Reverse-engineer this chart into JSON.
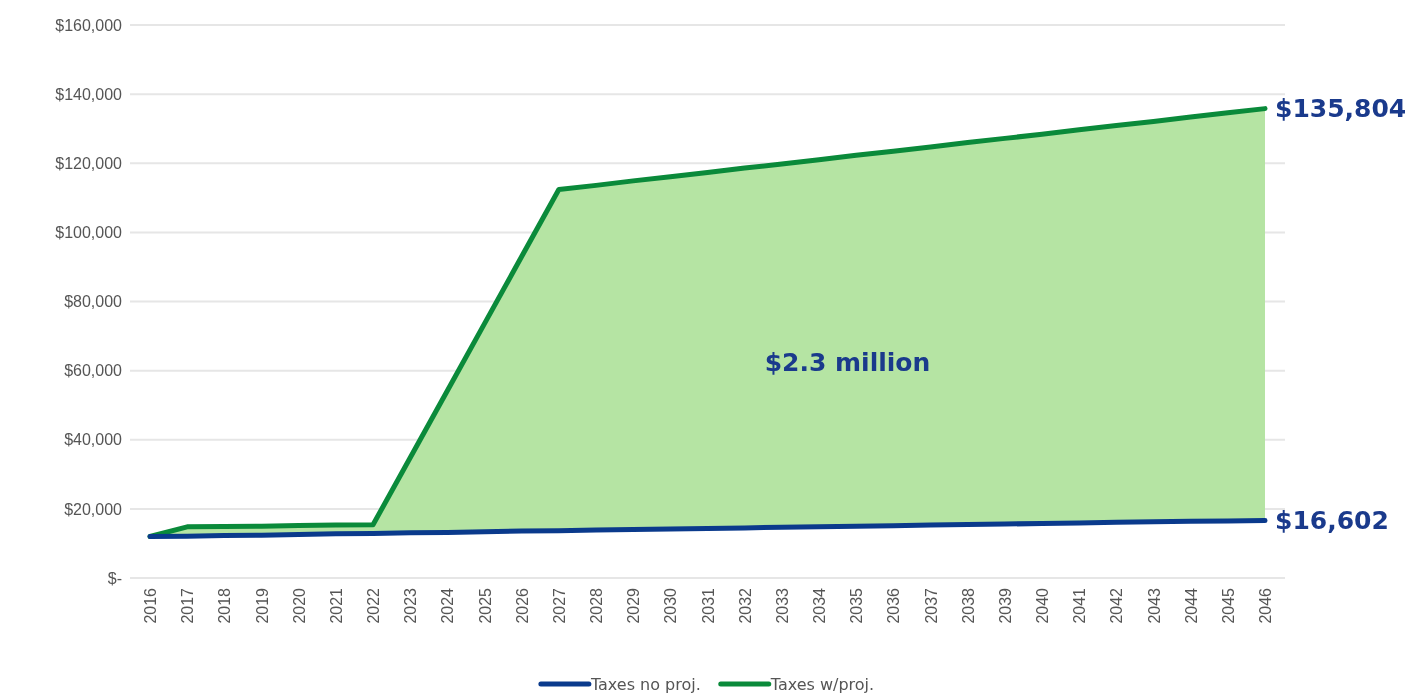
{
  "chart_data": {
    "type": "line",
    "categories": [
      "2016",
      "2017",
      "2018",
      "2019",
      "2020",
      "2021",
      "2022",
      "2023",
      "2024",
      "2025",
      "2026",
      "2027",
      "2028",
      "2029",
      "2030",
      "2031",
      "2032",
      "2033",
      "2034",
      "2035",
      "2036",
      "2037",
      "2038",
      "2039",
      "2040",
      "2041",
      "2042",
      "2043",
      "2044",
      "2045",
      "2046"
    ],
    "series": [
      {
        "name": "Taxes no proj.",
        "color": "#0a3a8c",
        "values": [
          12000,
          12100,
          12300,
          12400,
          12600,
          12800,
          12900,
          13100,
          13200,
          13400,
          13600,
          13700,
          13900,
          14000,
          14200,
          14300,
          14500,
          14700,
          14800,
          15000,
          15100,
          15300,
          15500,
          15600,
          15800,
          15900,
          16100,
          16300,
          16400,
          16500,
          16602
        ]
      },
      {
        "name": "Taxes w/proj.",
        "color": "#0a8a3a",
        "type": "area",
        "values": [
          12000,
          14800,
          14900,
          15000,
          15200,
          15300,
          15400,
          34800,
          54200,
          73600,
          93000,
          112400,
          113600,
          114900,
          116100,
          117300,
          118600,
          119800,
          121000,
          122300,
          123500,
          124700,
          126000,
          127200,
          128400,
          129700,
          130900,
          132100,
          133400,
          134600,
          135804
        ]
      }
    ],
    "ylim": [
      0,
      160000
    ],
    "yticks": [
      {
        "value": 0,
        "label": "$-"
      },
      {
        "value": 20000,
        "label": "$20,000"
      },
      {
        "value": 40000,
        "label": "$40,000"
      },
      {
        "value": 60000,
        "label": "$60,000"
      },
      {
        "value": 80000,
        "label": "$80,000"
      },
      {
        "value": 100000,
        "label": "$100,000"
      },
      {
        "value": 120000,
        "label": "$120,000"
      },
      {
        "value": 140000,
        "label": "$140,000"
      },
      {
        "value": 160000,
        "label": "$160,000"
      }
    ],
    "grid": "y",
    "legend": "bottom",
    "annotations": [
      {
        "text": "$135,804",
        "x": "2046",
        "y": 135804
      },
      {
        "text": "$16,602",
        "x": "2046",
        "y": 16602
      },
      "$2.3 million"
    ]
  }
}
